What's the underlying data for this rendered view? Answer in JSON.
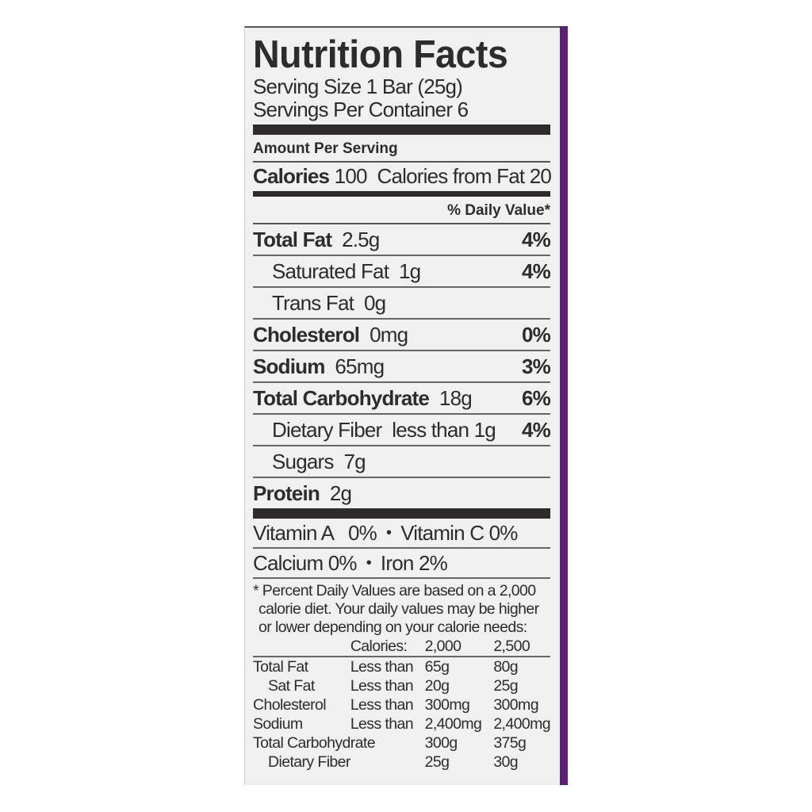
{
  "title": "Nutrition Facts",
  "serving_size": "Serving Size 1 Bar (25g)",
  "servings_per_container": "Servings Per Container 6",
  "amount_per_serving": "Amount Per Serving",
  "calories": {
    "label": "Calories",
    "value": "100",
    "from_fat": "Calories from Fat 20"
  },
  "daily_value_header": "% Daily Value*",
  "nutrients": [
    {
      "name": "Total Fat",
      "amount": "2.5g",
      "dv": "4%",
      "bold": true
    },
    {
      "name": "Saturated Fat",
      "amount": "1g",
      "dv": "4%",
      "bold": false
    },
    {
      "name": "Trans Fat",
      "amount": "0g",
      "dv": "",
      "bold": false
    },
    {
      "name": "Cholesterol",
      "amount": "0mg",
      "dv": "0%",
      "bold": true
    },
    {
      "name": "Sodium",
      "amount": "65mg",
      "dv": "3%",
      "bold": true
    },
    {
      "name": "Total Carbohydrate",
      "amount": "18g",
      "dv": "6%",
      "bold": true
    },
    {
      "name": "Dietary Fiber",
      "amount": "less than 1g",
      "dv": "4%",
      "bold": false
    },
    {
      "name": "Sugars",
      "amount": "7g",
      "dv": "",
      "bold": false
    },
    {
      "name": "Protein",
      "amount": "2g",
      "dv": "",
      "bold": true
    }
  ],
  "vitamins": [
    [
      "Vitamin A   0%",
      "Vitamin C 0%"
    ],
    [
      "Calcium 0%",
      "Iron 2%"
    ]
  ],
  "footnote": [
    "* Percent Daily Values are based on a 2,000",
    "calorie diet. Your daily values may be higher",
    "or lower depending on your calorie needs:"
  ],
  "dv_table": {
    "header": [
      "",
      "Calories:",
      "2,000",
      "2,500"
    ],
    "rows": [
      [
        "Total Fat",
        "Less than",
        "65g",
        "80g"
      ],
      [
        "Sat Fat",
        "Less than",
        "20g",
        "25g"
      ],
      [
        "Cholesterol",
        "Less than",
        "300mg",
        "300mg"
      ],
      [
        "Sodium",
        "Less than",
        "2,400mg",
        "2,400mg"
      ],
      [
        "Total Carbohydrate",
        "",
        "300g",
        "375g"
      ],
      [
        "Dietary Fiber",
        "",
        "25g",
        "30g"
      ]
    ]
  },
  "colors": {
    "text": "#2e2b2c",
    "panel": "#f0f0f0",
    "package_strip": "#5b1f7a"
  }
}
